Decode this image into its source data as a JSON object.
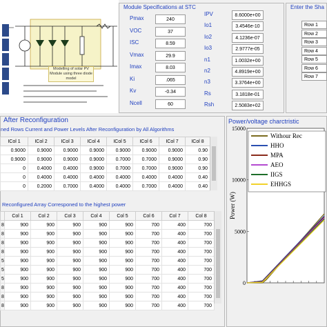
{
  "module_specs": {
    "title": "Module Specifications at STC",
    "left_params": [
      {
        "label": "Pmax",
        "value": "240"
      },
      {
        "label": "VOC",
        "value": "37"
      },
      {
        "label": "ISC",
        "value": "8.59"
      },
      {
        "label": "Vmax",
        "value": "29.9"
      },
      {
        "label": "Imax",
        "value": "8.03"
      },
      {
        "label": "Ki",
        "value": ".065"
      },
      {
        "label": "Kv",
        "value": "-0.34"
      },
      {
        "label": "Ncell",
        "value": "60"
      }
    ],
    "right_params": [
      {
        "label": "IPV",
        "value": "8.6000e+00"
      },
      {
        "label": "Io1",
        "value": "3.4546e-10"
      },
      {
        "label": "Io2",
        "value": "4.1236e-07"
      },
      {
        "label": "Io3",
        "value": "2.9777e-05"
      },
      {
        "label": "n1",
        "value": "1.0032e+00"
      },
      {
        "label": "n2",
        "value": "4.8919e+00"
      },
      {
        "label": "n3",
        "value": "3.3764e+00"
      },
      {
        "label": "Rs",
        "value": "3.1818e-01"
      },
      {
        "label": "Rsh",
        "value": "2.5083e+02"
      }
    ]
  },
  "shading": {
    "title": "Enter the Sha",
    "rows": [
      "Row 1",
      "Row 2",
      "Row 3",
      "Row 4",
      "Row 5",
      "Row 6",
      "Row 7"
    ]
  },
  "circuit": {
    "caption": "Modelling of solar PV Module using three diode model",
    "legend_text": "~",
    "labels": [
      "Ipv",
      "Id1",
      "Id2",
      "Id3",
      "Rs",
      "Rsh",
      "V"
    ]
  },
  "after_reconf": {
    "title": "After Reconfiguration",
    "subtitle": "ned Rows Current and Power Levels  After Reconfiguration by All Algorithms",
    "headers": [
      "ICol 1",
      "ICol 2",
      "ICol 3",
      "ICol 4",
      "ICol 5",
      "ICol 6",
      "ICol 7",
      "ICol 8"
    ],
    "rows": [
      [
        "0.9000",
        "0.9000",
        "0.9000",
        "0.9000",
        "0.9000",
        "0.9000",
        "0.9000",
        "0.90"
      ],
      [
        "0.9000",
        "0.9000",
        "0.9000",
        "0.9000",
        "0.7000",
        "0.7000",
        "0.9000",
        "0.90"
      ],
      [
        "0",
        "0.4000",
        "0.4000",
        "0.9000",
        "0.7000",
        "0.7000",
        "0.9000",
        "0.90"
      ],
      [
        "0",
        "0.4000",
        "0.4000",
        "0.4000",
        "0.4000",
        "0.4000",
        "0.4000",
        "0.40"
      ],
      [
        "0",
        "0.2000",
        "0.7000",
        "0.4000",
        "0.4000",
        "0.7000",
        "0.4000",
        "0.40"
      ]
    ]
  },
  "reconf_array": {
    "subtitle": "Reconfigured Array Corresponed to the highest power",
    "headers": [
      "Col 1",
      "Col 2",
      "Col 3",
      "Col 4",
      "Col 5",
      "Col 6",
      "Col 7",
      "Col 8"
    ],
    "row_labels": [
      "8",
      "8",
      "8",
      "8",
      "5",
      "5",
      "5",
      "8",
      "8",
      "8"
    ],
    "rows": [
      [
        "900",
        "900",
        "900",
        "900",
        "900",
        "700",
        "400",
        "700"
      ],
      [
        "900",
        "900",
        "900",
        "900",
        "900",
        "700",
        "400",
        "700"
      ],
      [
        "900",
        "900",
        "900",
        "900",
        "900",
        "700",
        "400",
        "700"
      ],
      [
        "900",
        "900",
        "900",
        "900",
        "900",
        "700",
        "400",
        "700"
      ],
      [
        "900",
        "900",
        "900",
        "900",
        "900",
        "700",
        "400",
        "700"
      ],
      [
        "900",
        "900",
        "900",
        "900",
        "900",
        "700",
        "400",
        "700"
      ],
      [
        "900",
        "900",
        "900",
        "900",
        "900",
        "700",
        "400",
        "700"
      ],
      [
        "900",
        "900",
        "900",
        "900",
        "900",
        "700",
        "400",
        "700"
      ],
      [
        "900",
        "900",
        "900",
        "900",
        "900",
        "700",
        "400",
        "700"
      ],
      [
        "900",
        "900",
        "900",
        "900",
        "900",
        "700",
        "400",
        "700"
      ]
    ]
  },
  "chart_panel_title": "Power/voltage charctristic",
  "chart_data": {
    "type": "line",
    "ylabel": "Power (W)",
    "ylim": [
      0,
      15000
    ],
    "yticks": [
      "0",
      "5000",
      "10000",
      "15000"
    ],
    "legend_placement": "top-left",
    "series": [
      {
        "name": "Withour Rec",
        "color": "#7a6a1e",
        "points": [
          [
            0.0,
            0
          ],
          [
            0.2,
            0
          ],
          [
            0.25,
            300
          ],
          [
            1.0,
            6700
          ]
        ]
      },
      {
        "name": "HHO",
        "color": "#2a4fb0",
        "points": [
          [
            0.0,
            0
          ],
          [
            0.2,
            200
          ],
          [
            1.0,
            6500
          ]
        ]
      },
      {
        "name": "MPA",
        "color": "#8a2b1b",
        "points": [
          [
            0.0,
            0
          ],
          [
            0.2,
            150
          ],
          [
            1.0,
            6400
          ]
        ]
      },
      {
        "name": "AEO",
        "color": "#b44ad0",
        "points": [
          [
            0.0,
            0
          ],
          [
            0.2,
            100
          ],
          [
            1.0,
            6300
          ]
        ]
      },
      {
        "name": "IIGS",
        "color": "#1d6e2a",
        "points": [
          [
            0.0,
            0
          ],
          [
            0.2,
            80
          ],
          [
            1.0,
            6200
          ]
        ]
      },
      {
        "name": "EHHGS",
        "color": "#f2d22a",
        "points": [
          [
            0.0,
            0
          ],
          [
            0.2,
            60
          ],
          [
            1.0,
            6100
          ]
        ]
      }
    ]
  }
}
